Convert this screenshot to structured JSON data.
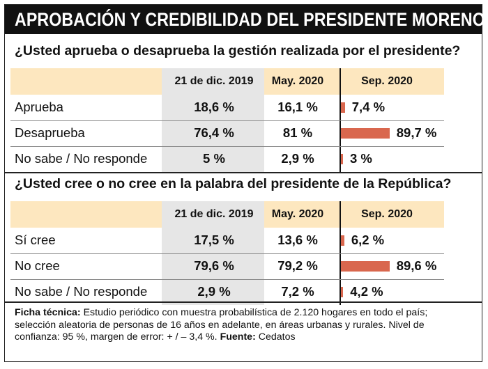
{
  "title": "APROBACIÓN Y CREDIBILIDAD DEL PRESIDENTE MORENO",
  "chart_data": [
    {
      "type": "table",
      "title": "¿Usted aprueba o desaprueba la gestión realizada por el presidente?",
      "columns": [
        "21 de dic. 2019",
        "May. 2020",
        "Sep. 2020"
      ],
      "rows": [
        {
          "label": "Aprueba",
          "values": [
            "18,6 %",
            "16,1 %",
            "7,4 %"
          ],
          "sep_value": 7.4
        },
        {
          "label": "Desaprueba",
          "values": [
            "76,4 %",
            "81 %",
            "89,7 %"
          ],
          "sep_value": 89.7
        },
        {
          "label": "No sabe / No responde",
          "values": [
            "5 %",
            "2,9 %",
            "3 %"
          ],
          "sep_value": 3
        }
      ],
      "bar_series": "Sep. 2020",
      "unit": "%"
    },
    {
      "type": "table",
      "title": "¿Usted cree o no cree en la palabra del presidente de la República?",
      "columns": [
        "21 de dic. 2019",
        "May. 2020",
        "Sep. 2020"
      ],
      "rows": [
        {
          "label": "Sí cree",
          "values": [
            "17,5 %",
            "13,6 %",
            "6,2 %"
          ],
          "sep_value": 6.2
        },
        {
          "label": "No cree",
          "values": [
            "79,6 %",
            "79,2 %",
            "89,6 %"
          ],
          "sep_value": 89.6
        },
        {
          "label": "No sabe / No responde",
          "values": [
            "2,9 %",
            "7,2 %",
            "4,2 %"
          ],
          "sep_value": 4.2
        }
      ],
      "bar_series": "Sep. 2020",
      "unit": "%"
    }
  ],
  "footer": {
    "ficha_label": "Ficha técnica:",
    "ficha_text": " Estudio periódico con muestra probabilística de 2.120 hogares en todo el país; selección aleatoria de personas de 16 años en adelante, en áreas urbanas y rurales. Nivel de confianza: 95 %, margen de error: + / – 3,4 %. ",
    "fuente_label": "Fuente:",
    "fuente_text": " Cedatos"
  },
  "colors": {
    "bar": "#d9674e",
    "header_bg": "#fde7bf",
    "col_bg": "#e6e6e6",
    "title_bg": "#111111"
  }
}
